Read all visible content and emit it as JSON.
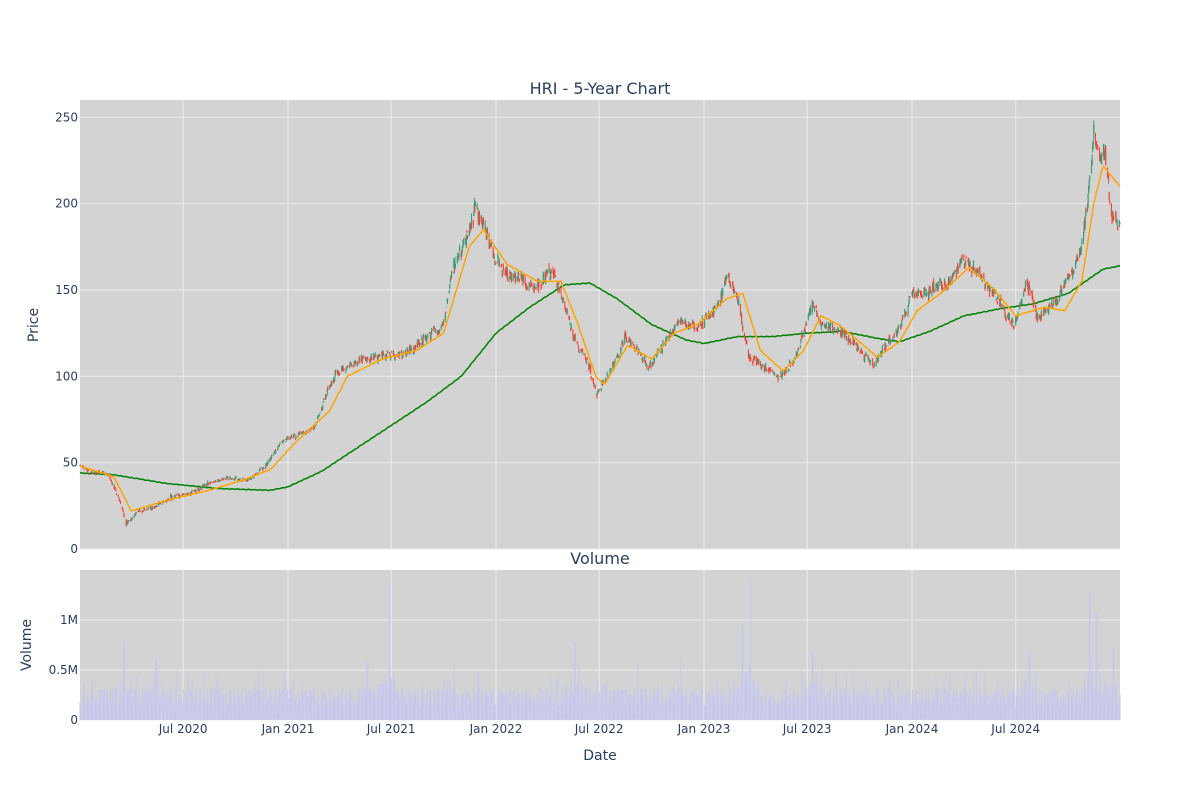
{
  "chart_data": [
    {
      "type": "candlestick",
      "title": "HRI - 5-Year Chart",
      "ylabel": "Price",
      "y_ticks": [
        0,
        50,
        100,
        150,
        200,
        250
      ],
      "ylim": [
        0,
        260
      ],
      "x_range": [
        "2020-01-02",
        "2024-12-31"
      ],
      "grid": true,
      "colors": {
        "up": "#3d9970",
        "down": "#ff4136",
        "ma_short": "#ffa500",
        "ma_long": "#008000",
        "plot_bg": "#d3d3d3"
      },
      "close_anchors": [
        [
          "2020-01-02",
          48
        ],
        [
          "2020-01-20",
          45
        ],
        [
          "2020-02-20",
          43
        ],
        [
          "2020-03-10",
          30
        ],
        [
          "2020-03-23",
          14
        ],
        [
          "2020-04-15",
          22
        ],
        [
          "2020-05-15",
          25
        ],
        [
          "2020-06-10",
          30
        ],
        [
          "2020-07-15",
          32
        ],
        [
          "2020-08-15",
          38
        ],
        [
          "2020-09-15",
          41
        ],
        [
          "2020-10-15",
          40
        ],
        [
          "2020-11-01",
          42
        ],
        [
          "2020-11-20",
          47
        ],
        [
          "2020-12-20",
          62
        ],
        [
          "2021-01-15",
          66
        ],
        [
          "2021-02-15",
          70
        ],
        [
          "2021-03-10",
          90
        ],
        [
          "2021-03-25",
          100
        ],
        [
          "2021-04-20",
          107
        ],
        [
          "2021-05-20",
          110
        ],
        [
          "2021-06-20",
          113
        ],
        [
          "2021-07-20",
          113
        ],
        [
          "2021-08-15",
          118
        ],
        [
          "2021-09-10",
          125
        ],
        [
          "2021-10-01",
          130
        ],
        [
          "2021-10-15",
          160
        ],
        [
          "2021-11-15",
          185
        ],
        [
          "2021-11-25",
          197
        ],
        [
          "2021-12-10",
          188
        ],
        [
          "2021-12-28",
          168
        ],
        [
          "2022-01-15",
          160
        ],
        [
          "2022-02-10",
          158
        ],
        [
          "2022-03-10",
          150
        ],
        [
          "2022-04-10",
          162
        ],
        [
          "2022-04-25",
          148
        ],
        [
          "2022-05-20",
          120
        ],
        [
          "2022-06-10",
          108
        ],
        [
          "2022-06-28",
          90
        ],
        [
          "2022-07-20",
          103
        ],
        [
          "2022-08-15",
          122
        ],
        [
          "2022-09-01",
          118
        ],
        [
          "2022-09-25",
          105
        ],
        [
          "2022-10-25",
          120
        ],
        [
          "2022-11-20",
          132
        ],
        [
          "2022-12-20",
          128
        ],
        [
          "2023-01-25",
          140
        ],
        [
          "2023-02-10",
          158
        ],
        [
          "2023-03-01",
          145
        ],
        [
          "2023-03-20",
          110
        ],
        [
          "2023-04-20",
          105
        ],
        [
          "2023-05-15",
          100
        ],
        [
          "2023-06-10",
          110
        ],
        [
          "2023-07-10",
          142
        ],
        [
          "2023-07-25",
          130
        ],
        [
          "2023-08-25",
          127
        ],
        [
          "2023-09-20",
          120
        ],
        [
          "2023-10-25",
          106
        ],
        [
          "2023-11-20",
          120
        ],
        [
          "2023-12-10",
          128
        ],
        [
          "2024-01-01",
          147
        ],
        [
          "2024-01-20",
          148
        ],
        [
          "2024-03-10",
          155
        ],
        [
          "2024-03-30",
          168
        ],
        [
          "2024-05-10",
          155
        ],
        [
          "2024-06-10",
          138
        ],
        [
          "2024-06-30",
          130
        ],
        [
          "2024-07-20",
          155
        ],
        [
          "2024-08-10",
          133
        ],
        [
          "2024-09-10",
          143
        ],
        [
          "2024-10-10",
          162
        ],
        [
          "2024-10-25",
          175
        ],
        [
          "2024-11-08",
          213
        ],
        [
          "2024-11-15",
          240
        ],
        [
          "2024-11-25",
          225
        ],
        [
          "2024-12-05",
          232
        ],
        [
          "2024-12-15",
          192
        ],
        [
          "2024-12-31",
          188
        ]
      ],
      "ma_short_anchors": [
        [
          "2020-01-02",
          48
        ],
        [
          "2020-03-01",
          42
        ],
        [
          "2020-04-01",
          22
        ],
        [
          "2020-06-01",
          28
        ],
        [
          "2020-08-15",
          34
        ],
        [
          "2020-10-15",
          40
        ],
        [
          "2020-12-01",
          46
        ],
        [
          "2021-01-15",
          62
        ],
        [
          "2021-03-15",
          80
        ],
        [
          "2021-04-15",
          100
        ],
        [
          "2021-06-15",
          110
        ],
        [
          "2021-08-15",
          115
        ],
        [
          "2021-10-01",
          125
        ],
        [
          "2021-11-15",
          175
        ],
        [
          "2021-12-10",
          185
        ],
        [
          "2022-01-20",
          165
        ],
        [
          "2022-03-15",
          155
        ],
        [
          "2022-04-25",
          155
        ],
        [
          "2022-05-25",
          130
        ],
        [
          "2022-06-25",
          100
        ],
        [
          "2022-07-10",
          95
        ],
        [
          "2022-08-20",
          118
        ],
        [
          "2022-10-01",
          110
        ],
        [
          "2022-11-10",
          125
        ],
        [
          "2022-12-20",
          130
        ],
        [
          "2023-02-10",
          145
        ],
        [
          "2023-03-10",
          148
        ],
        [
          "2023-04-10",
          115
        ],
        [
          "2023-05-20",
          103
        ],
        [
          "2023-06-25",
          115
        ],
        [
          "2023-07-25",
          135
        ],
        [
          "2023-08-25",
          130
        ],
        [
          "2023-10-01",
          120
        ],
        [
          "2023-11-01",
          111
        ],
        [
          "2023-12-10",
          120
        ],
        [
          "2024-01-10",
          138
        ],
        [
          "2024-02-20",
          148
        ],
        [
          "2024-04-10",
          163
        ],
        [
          "2024-05-25",
          150
        ],
        [
          "2024-07-01",
          135
        ],
        [
          "2024-08-20",
          140
        ],
        [
          "2024-09-25",
          138
        ],
        [
          "2024-10-25",
          155
        ],
        [
          "2024-11-15",
          200
        ],
        [
          "2024-12-01",
          222
        ],
        [
          "2024-12-31",
          210
        ]
      ],
      "ma_long_anchors": [
        [
          "2020-01-02",
          44
        ],
        [
          "2020-03-01",
          43
        ],
        [
          "2020-06-01",
          38
        ],
        [
          "2020-09-01",
          35
        ],
        [
          "2020-12-01",
          34
        ],
        [
          "2021-01-01",
          36
        ],
        [
          "2021-03-01",
          45
        ],
        [
          "2021-06-01",
          65
        ],
        [
          "2021-09-01",
          85
        ],
        [
          "2021-11-01",
          100
        ],
        [
          "2022-01-01",
          125
        ],
        [
          "2022-03-01",
          140
        ],
        [
          "2022-05-01",
          153
        ],
        [
          "2022-06-15",
          154
        ],
        [
          "2022-08-01",
          145
        ],
        [
          "2022-10-01",
          130
        ],
        [
          "2022-12-01",
          121
        ],
        [
          "2023-01-01",
          119
        ],
        [
          "2023-03-01",
          123
        ],
        [
          "2023-05-01",
          123
        ],
        [
          "2023-07-01",
          125
        ],
        [
          "2023-09-01",
          126
        ],
        [
          "2023-11-01",
          122
        ],
        [
          "2023-12-10",
          120
        ],
        [
          "2024-02-01",
          126
        ],
        [
          "2024-04-01",
          135
        ],
        [
          "2024-06-01",
          139
        ],
        [
          "2024-08-01",
          142
        ],
        [
          "2024-10-01",
          148
        ],
        [
          "2024-12-01",
          162
        ],
        [
          "2024-12-31",
          164
        ]
      ]
    },
    {
      "type": "bar",
      "title": "Volume",
      "ylabel": "Volume",
      "xlabel": "Date",
      "y_ticks": [
        0,
        500000,
        1000000
      ],
      "y_tick_labels": [
        "0",
        "0.5M",
        "1M"
      ],
      "ylim": [
        0,
        1500000
      ],
      "x_ticks": [
        "2020-07-01",
        "2021-01-01",
        "2021-07-01",
        "2022-01-01",
        "2022-07-01",
        "2023-01-01",
        "2023-07-01",
        "2024-01-01",
        "2024-07-01"
      ],
      "x_tick_labels": [
        "Jul 2020",
        "Jan 2021",
        "Jul 2021",
        "Jan 2022",
        "Jul 2022",
        "Jan 2023",
        "Jul 2023",
        "Jan 2024",
        "Jul 2024"
      ],
      "bar_color": "#c8c8ee",
      "spikes": [
        [
          "2020-03-20",
          780000
        ],
        [
          "2020-05-15",
          620000
        ],
        [
          "2021-05-20",
          590000
        ],
        [
          "2021-06-28",
          1400000
        ],
        [
          "2021-12-01",
          470000
        ],
        [
          "2022-05-20",
          780000
        ],
        [
          "2022-11-20",
          620000
        ],
        [
          "2023-03-10",
          910000
        ],
        [
          "2023-03-25",
          1420000
        ],
        [
          "2023-07-10",
          690000
        ],
        [
          "2024-07-25",
          690000
        ],
        [
          "2024-11-08",
          1230000
        ],
        [
          "2024-11-20",
          1080000
        ],
        [
          "2024-12-20",
          720000
        ]
      ]
    }
  ]
}
